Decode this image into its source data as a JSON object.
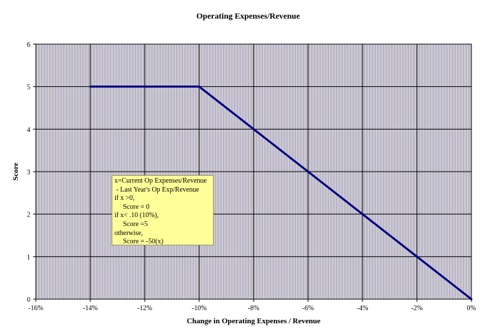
{
  "chart_data": {
    "type": "line",
    "title": "Operating Expenses/Revenue",
    "xlabel": "Change in Operating Expenses / Revenue",
    "ylabel": "Score",
    "xlim": [
      -16,
      0
    ],
    "ylim": [
      0,
      6
    ],
    "x_ticks": [
      "-16%",
      "-14%",
      "-12%",
      "-10%",
      "-8%",
      "-6%",
      "-4%",
      "-2%",
      "0%"
    ],
    "y_ticks": [
      "0",
      "1",
      "2",
      "3",
      "4",
      "5",
      "6"
    ],
    "grid": true,
    "series": [
      {
        "x": [
          -14,
          -10,
          -8,
          -6,
          -4,
          -2,
          0
        ],
        "y": [
          5,
          5,
          4,
          3,
          2,
          1,
          0
        ],
        "color": "#000080"
      }
    ],
    "annotation": {
      "lines": [
        "x=Current Op Expenses/Revenue",
        " - Last Year's Op Exp/Revenue",
        "if x >0,",
        "     Score = 0",
        "if x< .10 (10%),",
        "     Score =5",
        "otherwise,",
        "     Score = -50(x)"
      ],
      "background": "#ffff99"
    },
    "colors": {
      "plot_background": "#c0c0c0",
      "pattern_accent": "#b8a8e0",
      "series": "#000080"
    }
  }
}
